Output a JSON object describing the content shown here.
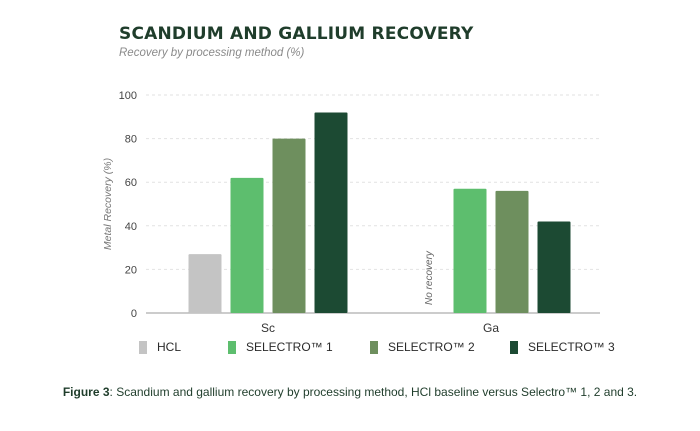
{
  "header": {
    "title": "SCANDIUM AND GALLIUM RECOVERY",
    "subtitle": "Recovery by processing method (%)"
  },
  "chart_data": {
    "type": "bar",
    "title": "SCANDIUM AND GALLIUM RECOVERY",
    "subtitle": "Recovery by processing method (%)",
    "xlabel": "",
    "ylabel": "Metal Recovery (%)",
    "ylim": [
      0,
      100
    ],
    "yticks": [
      0,
      20,
      40,
      60,
      80,
      100
    ],
    "grid": true,
    "legend_position": "bottom",
    "categories": [
      "Sc",
      "Ga"
    ],
    "series": [
      {
        "name": "HCL",
        "color": "#c4c4c4",
        "values": [
          27,
          null
        ]
      },
      {
        "name": "SELECTRO™ 1",
        "color": "#5dbe6e",
        "values": [
          62,
          57
        ]
      },
      {
        "name": "SELECTRO™ 2",
        "color": "#6e8f5e",
        "values": [
          80,
          56
        ]
      },
      {
        "name": "SELECTRO™ 3",
        "color": "#1c4a33",
        "values": [
          92,
          42
        ]
      }
    ],
    "annotations": [
      {
        "category": "Ga",
        "series": "HCL",
        "text": "No recovery"
      }
    ]
  },
  "caption": {
    "label": "Figure 3",
    "text": ": Scandium and gallium recovery by processing method, HCl baseline versus Selectro™ 1, 2 and 3."
  }
}
